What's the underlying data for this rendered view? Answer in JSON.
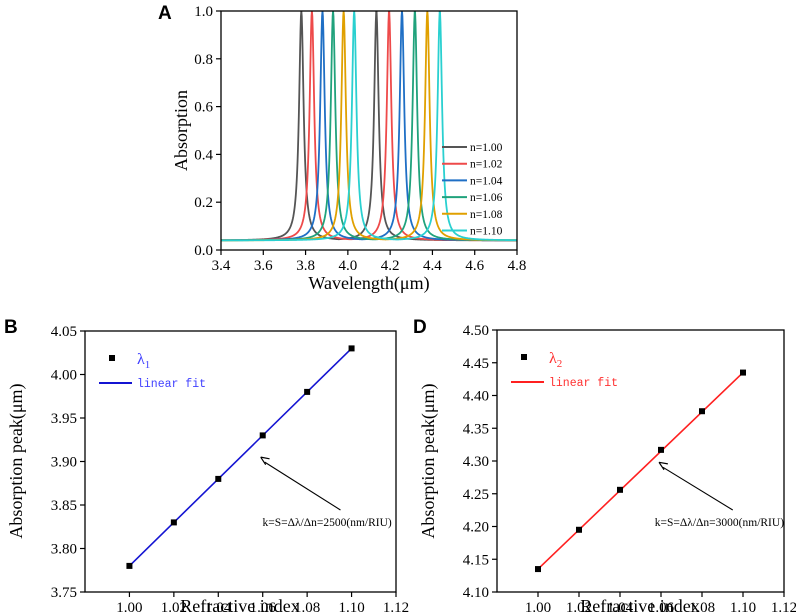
{
  "chart_data": [
    {
      "panel": "A",
      "type": "line",
      "title": "",
      "xlabel": "Wavelength(μm)",
      "ylabel": "Absorption",
      "xlim": [
        3.4,
        4.8
      ],
      "ylim": [
        0.0,
        1.0
      ],
      "xticks": [
        "3.4",
        "3.6",
        "3.8",
        "4.0",
        "4.2",
        "4.4",
        "4.6",
        "4.8"
      ],
      "yticks": [
        "0.0",
        "0.2",
        "0.4",
        "0.6",
        "0.8",
        "1.0"
      ],
      "baseline": 0.04,
      "linewidth_um": 0.013,
      "legend_position": "right",
      "series": [
        {
          "name": "n=1.00",
          "color": "#555555",
          "peaks": [
            3.78,
            4.135
          ]
        },
        {
          "name": "n=1.02",
          "color": "#ee4a4a",
          "peaks": [
            3.83,
            4.195
          ]
        },
        {
          "name": "n=1.04",
          "color": "#1f6fc5",
          "peaks": [
            3.88,
            4.256
          ]
        },
        {
          "name": "n=1.06",
          "color": "#20a27c",
          "peaks": [
            3.93,
            4.317
          ]
        },
        {
          "name": "n=1.08",
          "color": "#e0a000",
          "peaks": [
            3.98,
            4.376
          ]
        },
        {
          "name": "n=1.10",
          "color": "#2ad0d0",
          "peaks": [
            4.03,
            4.435
          ]
        }
      ]
    },
    {
      "panel": "B",
      "type": "scatter",
      "xlabel": "Refractive index",
      "ylabel": "Absorption peak(μm)",
      "xlim": [
        0.98,
        1.12
      ],
      "ylim": [
        3.75,
        4.05
      ],
      "xticks": [
        "1.00",
        "1.02",
        "1.04",
        "1.06",
        "1.08",
        "1.10",
        "1.12"
      ],
      "yticks": [
        "3.75",
        "3.80",
        "3.85",
        "3.90",
        "3.95",
        "4.00",
        "4.05"
      ],
      "legend_position": "top-left",
      "series_label": "λ1",
      "fit_label": "linear fit",
      "fit_color": "#1414d2",
      "label_color": "#4040ff",
      "x": [
        1.0,
        1.02,
        1.04,
        1.06,
        1.08,
        1.1
      ],
      "y": [
        3.78,
        3.83,
        3.88,
        3.93,
        3.98,
        4.03
      ],
      "annotation": "k=S=Δλ/Δn=2500(nm/RIU)",
      "annotation_target": [
        1.06,
        3.905
      ]
    },
    {
      "panel": "D",
      "type": "scatter",
      "xlabel": "Refractive index",
      "ylabel": "Absorption peak(μm)",
      "xlim": [
        0.98,
        1.12
      ],
      "ylim": [
        4.1,
        4.5
      ],
      "xticks": [
        "1.00",
        "1.02",
        "1.04",
        "1.06",
        "1.08",
        "1.10",
        "1.12"
      ],
      "yticks": [
        "4.10",
        "4.15",
        "4.20",
        "4.25",
        "4.30",
        "4.35",
        "4.40",
        "4.45",
        "4.50"
      ],
      "legend_position": "top-left",
      "series_label": "λ2",
      "fit_label": "linear fit",
      "fit_color": "#ff2020",
      "label_color": "#ff3030",
      "x": [
        1.0,
        1.02,
        1.04,
        1.06,
        1.08,
        1.1
      ],
      "y": [
        4.135,
        4.195,
        4.256,
        4.317,
        4.376,
        4.435
      ],
      "annotation": "k=S=Δλ/Δn=3000(nm/RIU)",
      "annotation_target": [
        1.06,
        4.298
      ]
    }
  ]
}
